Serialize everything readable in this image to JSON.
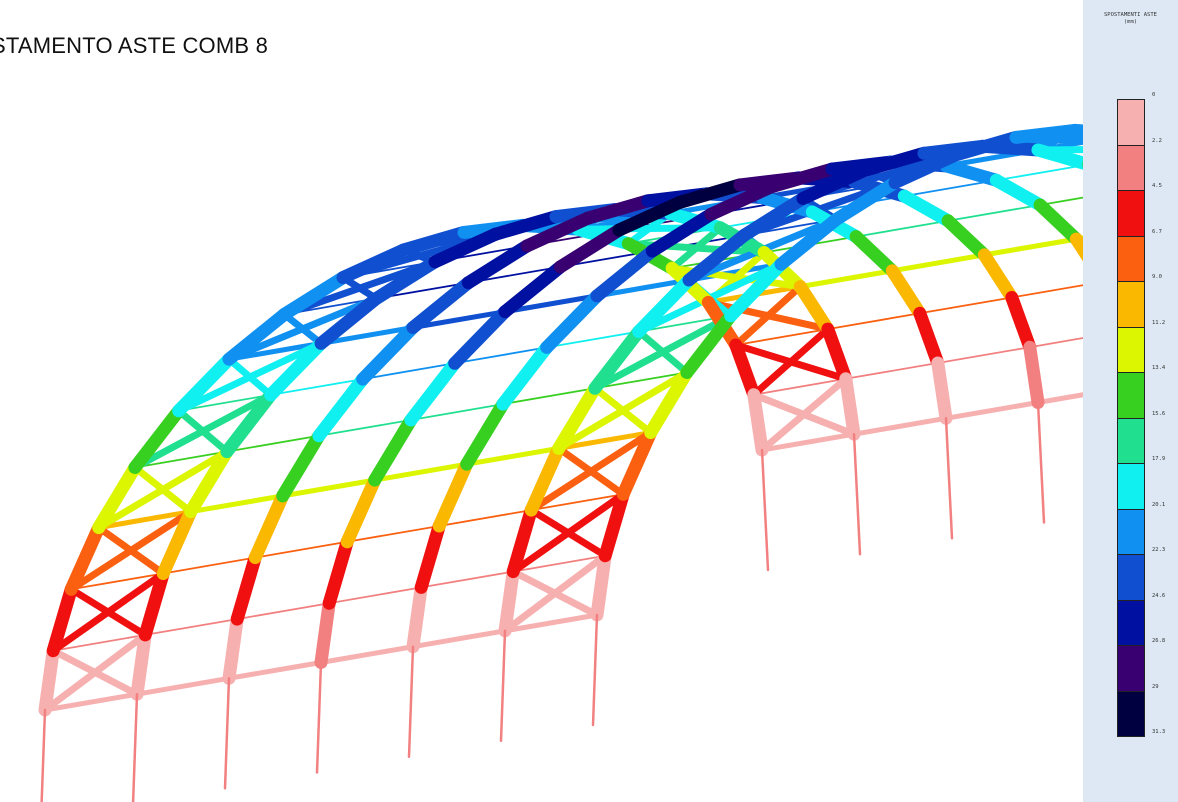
{
  "title": "STAMENTO ASTE COMB 8",
  "legend": {
    "title_line1": "SPOSTAMENTI ASTE",
    "title_line2": "(mm)",
    "labels": [
      "0",
      "2.2",
      "4.5",
      "6.7",
      "9.0",
      "11.2",
      "13.4",
      "15.6",
      "17.9",
      "20.1",
      "22.3",
      "24.6",
      "26.8",
      "29",
      "31.3"
    ],
    "colors": [
      "#f7b0b0",
      "#f28080",
      "#f01010",
      "#fa6010",
      "#fab800",
      "#dcf500",
      "#38d020",
      "#20e090",
      "#10f0f0",
      "#1090f0",
      "#1050d0",
      "#0010a0",
      "#380070",
      "#000040"
    ]
  },
  "palette": {
    "background": "#ffffff",
    "panel": "#dde8f4"
  }
}
